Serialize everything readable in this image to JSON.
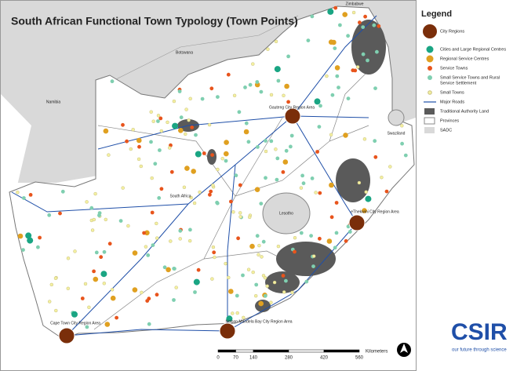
{
  "title": "South African Functional Town Typology (Town Points)",
  "legend": {
    "title": "Legend",
    "items": [
      {
        "label": [
          "City Regions"
        ],
        "symbol": "big-circle",
        "color": "#7a2e0a"
      },
      {
        "label": [
          "Cities and Large Regional Centres"
        ],
        "symbol": "circle",
        "color": "#1aa583"
      },
      {
        "label": [
          "Regional Service Centres"
        ],
        "symbol": "circle",
        "color": "#e0a020"
      },
      {
        "label": [
          "Service Towns"
        ],
        "symbol": "small-circle",
        "color": "#e8541c"
      },
      {
        "label": [
          "Small Service Towns and Rural",
          "Service Settlement"
        ],
        "symbol": "small-circle",
        "color": "#7fcfb0"
      },
      {
        "label": [
          "Small Towns"
        ],
        "symbol": "tiny-circle",
        "color": "#f4f0a0"
      },
      {
        "label": [
          "Major Roads"
        ],
        "symbol": "line",
        "color": "#1f4fa8"
      },
      {
        "label": [
          "Traditional Authority Land"
        ],
        "symbol": "area",
        "color": "#5a5a5a"
      },
      {
        "label": [
          "Provinces"
        ],
        "symbol": "outline",
        "color": "#888888"
      },
      {
        "label": [
          "SADC"
        ],
        "symbol": "area",
        "color": "#d9d9d9"
      }
    ]
  },
  "country_labels": [
    "Zimbabwe",
    "Botswana",
    "Namibia",
    "Swaziland",
    "Lesotho",
    "South Africa"
  ],
  "city_regions": [
    "Gauteng City Region Area",
    "eThekwini City Region Area",
    "Cape Town City Region Area",
    "Nelson Mandela Bay City Region Area"
  ],
  "scale": {
    "ticks": [
      0,
      70,
      140,
      280,
      420,
      560
    ],
    "unit": "Kilometers"
  },
  "logo": {
    "name": "CSIR",
    "tagline": "our future through science"
  }
}
